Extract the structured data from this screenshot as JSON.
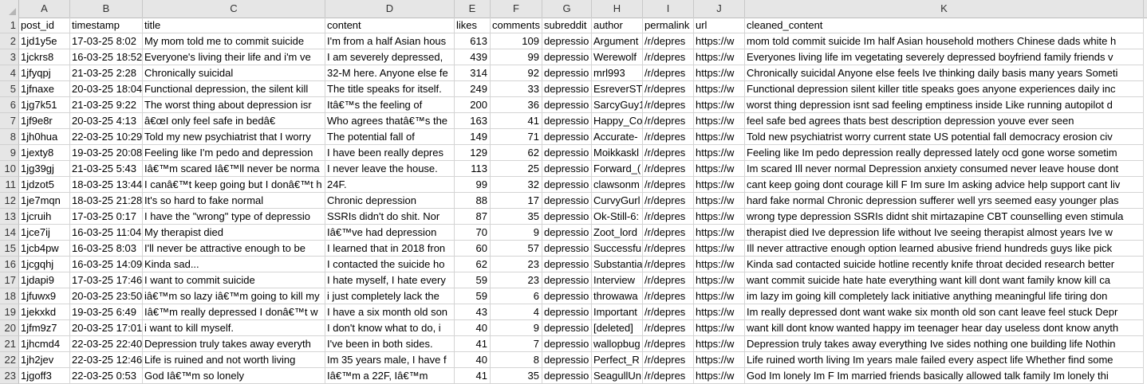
{
  "columns": [
    "A",
    "B",
    "C",
    "D",
    "E",
    "F",
    "G",
    "H",
    "I",
    "J",
    "K"
  ],
  "rows": [
    {
      "n": "1",
      "cells": [
        "post_id",
        "timestamp",
        "title",
        "content",
        "likes",
        "comments",
        "subreddit",
        "author",
        "permalink",
        "url",
        "cleaned_content"
      ]
    },
    {
      "n": "2",
      "cells": [
        "1jd1y5e",
        "17-03-25 8:02",
        "My mom told me to commit suicide",
        "I'm from a half Asian hous",
        "613",
        "109",
        "depressio",
        "Argument",
        "/r/depres",
        "https://w",
        "mom told commit suicide Im half Asian household mothers Chinese dads white h"
      ]
    },
    {
      "n": "3",
      "cells": [
        "1jckrs8",
        "16-03-25 18:52",
        "Everyone's living their life and i'm ve",
        "I am severely depressed,",
        "439",
        "99",
        "depressio",
        "Werewolf",
        "/r/depres",
        "https://w",
        "Everyones living life im vegetating severely depressed boyfriend family friends v"
      ]
    },
    {
      "n": "4",
      "cells": [
        "1jfyqpj",
        "21-03-25 2:28",
        "Chronically suicidal",
        "32-M here. Anyone else fe",
        "314",
        "92",
        "depressio",
        "mrl993",
        "/r/depres",
        "https://w",
        "Chronically suicidal Anyone else feels Ive thinking daily basis many years Someti"
      ]
    },
    {
      "n": "5",
      "cells": [
        "1jfnaxe",
        "20-03-25 18:04",
        "Functional depression, the silent kill",
        "The title speaks for itself.",
        "249",
        "33",
        "depressio",
        "EsreverST",
        "/r/depres",
        "https://w",
        "Functional depression silent killer title speaks goes anyone experiences daily inc"
      ]
    },
    {
      "n": "6",
      "cells": [
        "1jg7k51",
        "21-03-25 9:22",
        "The worst thing about depression isr",
        "Itâ€™s the feeling of",
        "200",
        "36",
        "depressio",
        "SarcyGuy1",
        "/r/depres",
        "https://w",
        "worst thing depression isnt sad feeling emptiness inside Like running autopilot d"
      ]
    },
    {
      "n": "7",
      "cells": [
        "1jf9e8r",
        "20-03-25 4:13",
        "â€œI only feel safe in bedâ€",
        "Who agrees thatâ€™s the",
        "163",
        "41",
        "depressio",
        "Happy_Co",
        "/r/depres",
        "https://w",
        "feel safe bed agrees thats best description depression youve ever seen"
      ]
    },
    {
      "n": "8",
      "cells": [
        "1jh0hua",
        "22-03-25 10:29",
        "Told my new psychiatrist that I worry",
        "The potential fall of",
        "149",
        "71",
        "depressio",
        "Accurate-",
        "/r/depres",
        "https://w",
        "Told new psychiatrist worry current state US potential fall democracy erosion civ"
      ]
    },
    {
      "n": "9",
      "cells": [
        "1jexty8",
        "19-03-25 20:08",
        "Feeling like I'm pedo and depression",
        "I have been really depres",
        "129",
        "62",
        "depressio",
        "Moikkaskl",
        "/r/depres",
        "https://w",
        "Feeling like Im pedo depression really depressed lately ocd gone worse sometim"
      ]
    },
    {
      "n": "10",
      "cells": [
        "1jg39gj",
        "21-03-25 5:43",
        "Iâ€™m scared Iâ€™ll never be norma",
        "I never leave the house.",
        "113",
        "25",
        "depressio",
        "Forward_(",
        "/r/depres",
        "https://w",
        "Im scared Ill never normal Depression anxiety consumed never leave house dont"
      ]
    },
    {
      "n": "11",
      "cells": [
        "1jdzot5",
        "18-03-25 13:44",
        "I canâ€™t keep going but I donâ€™t h",
        "24F.",
        "99",
        "32",
        "depressio",
        "clawsonm",
        "/r/depres",
        "https://w",
        "cant keep going dont courage kill F Im sure Im asking advice help support cant liv"
      ]
    },
    {
      "n": "12",
      "cells": [
        "1je7mqn",
        "18-03-25 21:28",
        "It's so hard to fake normal",
        "Chronic depression",
        "88",
        "17",
        "depressio",
        "CurvyGurl",
        "/r/depres",
        "https://w",
        "hard fake normal Chronic depression sufferer well yrs seemed easy younger plas"
      ]
    },
    {
      "n": "13",
      "cells": [
        "1jcruih",
        "17-03-25 0:17",
        "I have the \"wrong\" type of depressio",
        "SSRIs didn't do shit. Nor",
        "87",
        "35",
        "depressio",
        "Ok-Still-6:",
        "/r/depres",
        "https://w",
        "wrong type depression SSRIs didnt shit mirtazapine CBT counselling even stimula"
      ]
    },
    {
      "n": "14",
      "cells": [
        "1jce7ij",
        "16-03-25 11:04",
        "My therapist died",
        "Iâ€™ve had depression",
        "70",
        "9",
        "depressio",
        "Zoot_lord",
        "/r/depres",
        "https://w",
        "therapist died Ive depression life without Ive seeing therapist almost years Ive w"
      ]
    },
    {
      "n": "15",
      "cells": [
        "1jcb4pw",
        "16-03-25 8:03",
        "I'll never be attractive enough to be",
        "I learned that in 2018 fron",
        "60",
        "57",
        "depressio",
        "Successfu",
        "/r/depres",
        "https://w",
        "Ill never attractive enough option learned abusive friend hundreds guys like pick"
      ]
    },
    {
      "n": "16",
      "cells": [
        "1jcgqhj",
        "16-03-25 14:09",
        "Kinda sad...",
        "I contacted the suicide ho",
        "62",
        "23",
        "depressio",
        "Substantia",
        "/r/depres",
        "https://w",
        "Kinda sad contacted suicide hotline recently knife throat decided research better"
      ]
    },
    {
      "n": "17",
      "cells": [
        "1jdapi9",
        "17-03-25 17:46",
        "I want to commit suicide",
        "I hate myself, I hate every",
        "59",
        "23",
        "depressio",
        "Interview",
        "/r/depres",
        "https://w",
        "want commit suicide hate hate everything want kill dont want family know kill ca"
      ]
    },
    {
      "n": "18",
      "cells": [
        "1jfuwx9",
        "20-03-25 23:50",
        "iâ€™m so lazy iâ€™m going to kill my",
        "i just completely lack the",
        "59",
        "6",
        "depressio",
        "throwawa",
        "/r/depres",
        "https://w",
        "im lazy im going kill completely lack initiative anything meaningful life tiring don"
      ]
    },
    {
      "n": "19",
      "cells": [
        "1jekxkd",
        "19-03-25 6:49",
        "Iâ€™m really depressed I donâ€™t w",
        "I have a six month old son",
        "43",
        "4",
        "depressio",
        "Important",
        "/r/depres",
        "https://w",
        "Im really depressed dont want wake six month old son cant leave feel stuck Depr"
      ]
    },
    {
      "n": "20",
      "cells": [
        "1jfm9z7",
        "20-03-25 17:01",
        "i want to kill myself.",
        "I don't know what to do, i",
        "40",
        "9",
        "depressio",
        "[deleted]",
        "/r/depres",
        "https://w",
        "want kill dont know wanted happy im teenager hear day useless dont know anyth"
      ]
    },
    {
      "n": "21",
      "cells": [
        "1jhcmd4",
        "22-03-25 22:40",
        "Depression truly takes away everyth",
        "I've been in both sides.",
        "41",
        "7",
        "depressio",
        "wallopbug",
        "/r/depres",
        "https://w",
        "Depression truly takes away everything Ive sides nothing one building life Nothin"
      ]
    },
    {
      "n": "22",
      "cells": [
        "1jh2jev",
        "22-03-25 12:46",
        "Life is ruined and not worth living",
        "Im 35 years male, I have f",
        "40",
        "8",
        "depressio",
        "Perfect_R",
        "/r/depres",
        "https://w",
        "Life ruined worth living Im years male failed every aspect life Whether find some"
      ]
    },
    {
      "n": "23",
      "cells": [
        "1jgoff3",
        "22-03-25 0:53",
        "God Iâ€™m so lonely",
        "Iâ€™m a 22F, Iâ€™m",
        "41",
        "35",
        "depressio",
        "SeagullUn",
        "/r/depres",
        "https://w",
        "God Im lonely Im F Im married friends basically allowed talk family Im lonely thi"
      ]
    }
  ]
}
